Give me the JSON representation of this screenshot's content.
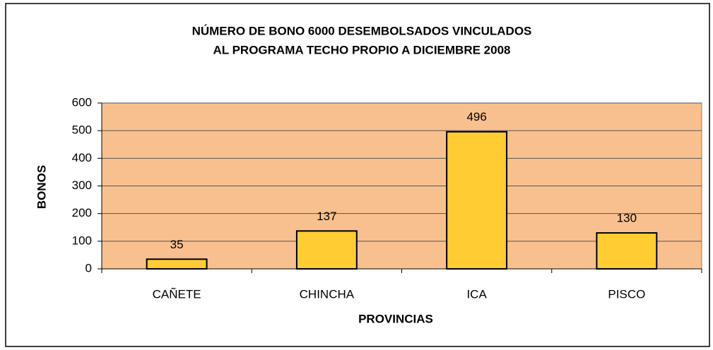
{
  "chart_data": {
    "type": "bar",
    "title": [
      "NÚMERO DE BONO 6000 DESEMBOLSADOS VINCULADOS",
      "AL PROGRAMA TECHO PROPIO A DICIEMBRE 2008"
    ],
    "x_label": "PROVINCIAS",
    "y_label": "BONOS",
    "categories": [
      "CAÑETE",
      "CHINCHA",
      "ICA",
      "PISCO"
    ],
    "values": [
      35,
      137,
      496,
      130
    ],
    "color": "#ffcc33",
    "plot_background": "#f9c08f",
    "ylim": [
      0,
      600
    ],
    "yticks": [
      0,
      100,
      200,
      300,
      400,
      500,
      600
    ],
    "grid": true
  }
}
